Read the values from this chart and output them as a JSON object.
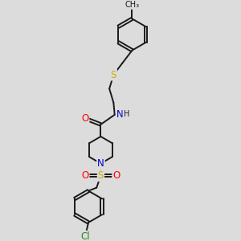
{
  "bg_color": "#dcdcdc",
  "bond_color": "#1a1a1a",
  "bond_width": 1.4,
  "atom_colors": {
    "O": "#ff0000",
    "N": "#0000cd",
    "S": "#ccaa00",
    "Cl": "#228b22",
    "C": "#1a1a1a"
  },
  "font_size_atom": 8.5,
  "font_size_sub": 7.0,
  "fig_w": 3.0,
  "fig_h": 3.0,
  "dpi": 100,
  "xlim": [
    0,
    10
  ],
  "ylim": [
    0,
    10
  ]
}
